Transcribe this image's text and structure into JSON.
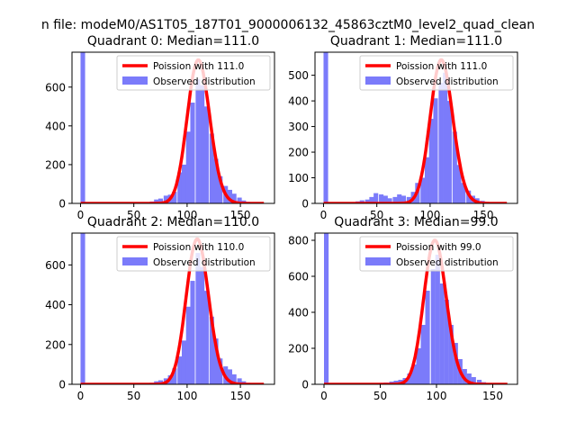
{
  "figure": {
    "suptitle": "n file: modeM0/AS1T05_187T01_9000006132_45863cztM0_level2_quad_clean"
  },
  "colors": {
    "hist": "#7b7bfa",
    "poisson": "#ff0000",
    "axis": "#000000"
  },
  "chart_data": [
    {
      "type": "bar",
      "title": "Quadrant 0: Median=111.0",
      "xlabel": "",
      "ylabel": "",
      "xlim": [
        -8,
        182
      ],
      "ylim": [
        0,
        780
      ],
      "xticks": [
        0,
        50,
        100,
        150
      ],
      "yticks": [
        0,
        200,
        400,
        600
      ],
      "grid": false,
      "legend_position": "upper right",
      "series": [
        {
          "name": "Poission with 111.0",
          "kind": "line",
          "mean": 111.0,
          "peak": 740,
          "x_range": [
            0,
            172
          ]
        },
        {
          "name": "Observed distribution",
          "kind": "hist",
          "bin_width": 4.3,
          "bins": [
            [
              0,
              780
            ],
            [
              60,
              5
            ],
            [
              65,
              10
            ],
            [
              69,
              20
            ],
            [
              73,
              25
            ],
            [
              78,
              40
            ],
            [
              82,
              45
            ],
            [
              86,
              60
            ],
            [
              91,
              160
            ],
            [
              95,
              200
            ],
            [
              99,
              370
            ],
            [
              103,
              520
            ],
            [
              108,
              640
            ],
            [
              112,
              610
            ],
            [
              116,
              500
            ],
            [
              121,
              360
            ],
            [
              125,
              230
            ],
            [
              129,
              140
            ],
            [
              134,
              90
            ],
            [
              138,
              70
            ],
            [
              142,
              50
            ],
            [
              147,
              30
            ],
            [
              151,
              15
            ],
            [
              155,
              8
            ],
            [
              160,
              5
            ]
          ]
        }
      ]
    },
    {
      "type": "bar",
      "title": "Quadrant 1: Median=111.0",
      "xlabel": "",
      "ylabel": "",
      "xlim": [
        -8,
        182
      ],
      "ylim": [
        0,
        590
      ],
      "xticks": [
        0,
        50,
        100,
        150
      ],
      "yticks": [
        0,
        100,
        200,
        300,
        400,
        500
      ],
      "grid": false,
      "legend_position": "upper right",
      "series": [
        {
          "name": "Poission with 111.0",
          "kind": "line",
          "mean": 111.0,
          "peak": 560,
          "x_range": [
            0,
            172
          ]
        },
        {
          "name": "Observed distribution",
          "kind": "hist",
          "bin_width": 4.3,
          "bins": [
            [
              0,
              590
            ],
            [
              21,
              3
            ],
            [
              26,
              5
            ],
            [
              30,
              8
            ],
            [
              34,
              12
            ],
            [
              39,
              15
            ],
            [
              43,
              25
            ],
            [
              47,
              40
            ],
            [
              52,
              35
            ],
            [
              56,
              30
            ],
            [
              60,
              20
            ],
            [
              65,
              25
            ],
            [
              69,
              35
            ],
            [
              73,
              30
            ],
            [
              78,
              25
            ],
            [
              82,
              45
            ],
            [
              86,
              80
            ],
            [
              91,
              100
            ],
            [
              95,
              180
            ],
            [
              99,
              330
            ],
            [
              103,
              410
            ],
            [
              108,
              470
            ],
            [
              112,
              510
            ],
            [
              116,
              400
            ],
            [
              121,
              280
            ],
            [
              125,
              150
            ],
            [
              129,
              80
            ],
            [
              134,
              50
            ],
            [
              138,
              30
            ],
            [
              142,
              20
            ],
            [
              147,
              10
            ]
          ]
        }
      ]
    },
    {
      "type": "bar",
      "title": "Quadrant 2: Median=110.0",
      "xlabel": "",
      "ylabel": "",
      "xlim": [
        -8,
        182
      ],
      "ylim": [
        0,
        760
      ],
      "xticks": [
        0,
        50,
        100,
        150
      ],
      "yticks": [
        0,
        200,
        400,
        600
      ],
      "grid": false,
      "legend_position": "upper right",
      "series": [
        {
          "name": "Poission with 110.0",
          "kind": "line",
          "mean": 110.0,
          "peak": 730,
          "x_range": [
            0,
            172
          ]
        },
        {
          "name": "Observed distribution",
          "kind": "hist",
          "bin_width": 4.3,
          "bins": [
            [
              0,
              760
            ],
            [
              60,
              5
            ],
            [
              65,
              8
            ],
            [
              69,
              15
            ],
            [
              73,
              20
            ],
            [
              78,
              30
            ],
            [
              82,
              45
            ],
            [
              86,
              80
            ],
            [
              91,
              140
            ],
            [
              95,
              220
            ],
            [
              99,
              390
            ],
            [
              103,
              520
            ],
            [
              108,
              660
            ],
            [
              112,
              590
            ],
            [
              116,
              470
            ],
            [
              121,
              340
            ],
            [
              125,
              230
            ],
            [
              129,
              130
            ],
            [
              134,
              90
            ],
            [
              138,
              75
            ],
            [
              142,
              50
            ],
            [
              147,
              30
            ],
            [
              151,
              15
            ],
            [
              155,
              8
            ]
          ]
        }
      ]
    },
    {
      "type": "bar",
      "title": "Quadrant 3: Median=99.0",
      "xlabel": "",
      "ylabel": "",
      "xlim": [
        -8,
        172
      ],
      "ylim": [
        0,
        840
      ],
      "xticks": [
        0,
        50,
        100,
        150
      ],
      "yticks": [
        0,
        200,
        400,
        600,
        800
      ],
      "grid": false,
      "legend_position": "upper right",
      "series": [
        {
          "name": "Poission with 99.0",
          "kind": "line",
          "mean": 99.0,
          "peak": 800,
          "x_range": [
            0,
            163
          ]
        },
        {
          "name": "Observed distribution",
          "kind": "hist",
          "bin_width": 4.1,
          "bins": [
            [
              0,
              840
            ],
            [
              45,
              5
            ],
            [
              49,
              8
            ],
            [
              53,
              10
            ],
            [
              58,
              15
            ],
            [
              62,
              20
            ],
            [
              66,
              25
            ],
            [
              70,
              35
            ],
            [
              74,
              60
            ],
            [
              78,
              110
            ],
            [
              82,
              200
            ],
            [
              86,
              330
            ],
            [
              90,
              520
            ],
            [
              95,
              640
            ],
            [
              99,
              720
            ],
            [
              103,
              560
            ],
            [
              107,
              470
            ],
            [
              111,
              330
            ],
            [
              115,
              230
            ],
            [
              119,
              140
            ],
            [
              123,
              85
            ],
            [
              127,
              60
            ],
            [
              131,
              40
            ],
            [
              136,
              25
            ],
            [
              140,
              12
            ],
            [
              144,
              6
            ]
          ]
        }
      ]
    }
  ]
}
